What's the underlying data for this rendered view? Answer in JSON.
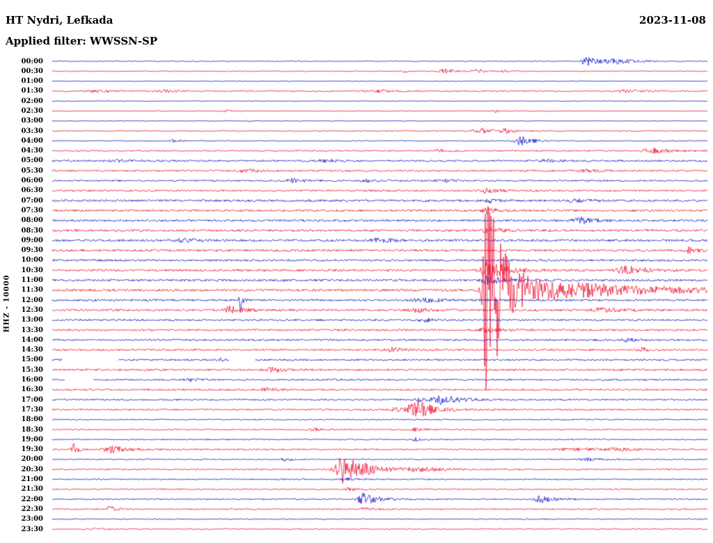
{
  "header": {
    "station": "HT Nydri, Lefkada",
    "date": "2023-11-08",
    "filter_label": "Applied filter: WWSSN-SP"
  },
  "axis": {
    "left_label": "HHZ - 10000"
  },
  "chart_data": {
    "type": "seismogram-helicorder",
    "station": "HT Nydri, Lefkada",
    "date": "2023-11-08",
    "filter": "WWSSN-SP",
    "channel_scale": "HHZ - 10000",
    "row_interval_minutes": 30,
    "trace_colors": {
      "blue": "#1414cc",
      "red": "#ee1133"
    },
    "rows": [
      {
        "time": "00:00",
        "color": "blue",
        "noise": 0.7,
        "events": [
          {
            "pos": 0.815,
            "amp": 8,
            "rise": 4,
            "decay": 18
          },
          {
            "pos": 0.862,
            "amp": 3,
            "rise": 10,
            "decay": 30
          }
        ]
      },
      {
        "time": "00:30",
        "color": "red",
        "noise": 0.7,
        "events": [
          {
            "pos": 0.538,
            "amp": 2,
            "rise": 1.5,
            "decay": 3
          },
          {
            "pos": 0.6,
            "amp": 3,
            "rise": 6,
            "decay": 16
          },
          {
            "pos": 0.648,
            "amp": 3,
            "rise": 4,
            "decay": 12
          },
          {
            "pos": 0.69,
            "amp": 2,
            "rise": 3,
            "decay": 8
          }
        ]
      },
      {
        "time": "01:00",
        "color": "blue",
        "noise": 0.5,
        "events": []
      },
      {
        "time": "01:30",
        "color": "red",
        "noise": 1.0,
        "events": [
          {
            "pos": 0.07,
            "amp": 2,
            "rise": 8,
            "decay": 18
          },
          {
            "pos": 0.175,
            "amp": 2,
            "rise": 8,
            "decay": 18
          },
          {
            "pos": 0.5,
            "amp": 1.5,
            "rise": 12,
            "decay": 25
          },
          {
            "pos": 0.88,
            "amp": 2,
            "rise": 10,
            "decay": 22
          }
        ]
      },
      {
        "time": "02:00",
        "color": "blue",
        "noise": 0.5,
        "events": []
      },
      {
        "time": "02:30",
        "color": "red",
        "noise": 0.6,
        "events": [
          {
            "pos": 0.265,
            "amp": 1.8,
            "rise": 3,
            "decay": 8
          },
          {
            "pos": 0.675,
            "amp": 2,
            "rise": 3,
            "decay": 8
          }
        ]
      },
      {
        "time": "03:00",
        "color": "blue",
        "noise": 0.5,
        "events": [
          {
            "pos": 0.3,
            "amp": 1.5,
            "rise": 2,
            "decay": 6
          }
        ]
      },
      {
        "time": "03:30",
        "color": "red",
        "noise": 0.8,
        "events": [
          {
            "pos": 0.655,
            "amp": 4,
            "rise": 8,
            "decay": 22
          },
          {
            "pos": 0.695,
            "amp": 3,
            "rise": 5,
            "decay": 14
          }
        ]
      },
      {
        "time": "04:00",
        "color": "blue",
        "noise": 0.7,
        "events": [
          {
            "pos": 0.185,
            "amp": 2,
            "rise": 4,
            "decay": 10
          },
          {
            "pos": 0.715,
            "amp": 7,
            "rise": 6,
            "decay": 16
          }
        ]
      },
      {
        "time": "04:30",
        "color": "red",
        "noise": 1.0,
        "events": [
          {
            "pos": 0.59,
            "amp": 2,
            "rise": 6,
            "decay": 14
          },
          {
            "pos": 0.915,
            "amp": 4,
            "rise": 9,
            "decay": 28
          }
        ]
      },
      {
        "time": "05:00",
        "color": "blue",
        "noise": 1.3,
        "events": [
          {
            "pos": 0.1,
            "amp": 1.8,
            "rise": 10,
            "decay": 20
          },
          {
            "pos": 0.42,
            "amp": 1.8,
            "rise": 10,
            "decay": 20
          },
          {
            "pos": 0.76,
            "amp": 1.8,
            "rise": 10,
            "decay": 20
          }
        ]
      },
      {
        "time": "05:30",
        "color": "red",
        "noise": 1.3,
        "events": [
          {
            "pos": 0.3,
            "amp": 1.8,
            "rise": 10,
            "decay": 20
          },
          {
            "pos": 0.82,
            "amp": 1.8,
            "rise": 10,
            "decay": 20
          }
        ]
      },
      {
        "time": "06:00",
        "color": "blue",
        "noise": 1.2,
        "events": [
          {
            "pos": 0.37,
            "amp": 2.5,
            "rise": 8,
            "decay": 18
          },
          {
            "pos": 0.48,
            "amp": 2,
            "rise": 8,
            "decay": 18
          },
          {
            "pos": 0.6,
            "amp": 2,
            "rise": 8,
            "decay": 18
          }
        ]
      },
      {
        "time": "06:30",
        "color": "red",
        "noise": 1.3,
        "events": [
          {
            "pos": 0.664,
            "amp": 3,
            "rise": 6,
            "decay": 18
          }
        ]
      },
      {
        "time": "07:00",
        "color": "blue",
        "noise": 1.5,
        "events": [
          {
            "pos": 0.664,
            "amp": 3,
            "rise": 5,
            "decay": 14
          },
          {
            "pos": 0.8,
            "amp": 2.5,
            "rise": 10,
            "decay": 22
          }
        ]
      },
      {
        "time": "07:30",
        "color": "red",
        "noise": 1.5,
        "events": [
          {
            "pos": 0.664,
            "amp": 4,
            "rise": 5,
            "decay": 18
          }
        ]
      },
      {
        "time": "08:00",
        "color": "blue",
        "noise": 1.5,
        "events": [
          {
            "pos": 0.805,
            "amp": 5,
            "rise": 6,
            "decay": 18
          }
        ]
      },
      {
        "time": "08:30",
        "color": "red",
        "noise": 1.6,
        "events": [
          {
            "pos": 0.664,
            "amp": 4,
            "rise": 5,
            "decay": 22
          }
        ]
      },
      {
        "time": "09:00",
        "color": "blue",
        "noise": 1.6,
        "events": [
          {
            "pos": 0.2,
            "amp": 2.5,
            "rise": 10,
            "decay": 22
          },
          {
            "pos": 0.5,
            "amp": 2.5,
            "rise": 10,
            "decay": 22
          }
        ]
      },
      {
        "time": "09:30",
        "color": "red",
        "noise": 1.6,
        "events": [
          {
            "pos": 0.972,
            "amp": 4,
            "rise": 4,
            "decay": 12
          }
        ]
      },
      {
        "time": "10:00",
        "color": "blue",
        "noise": 1.5,
        "events": []
      },
      {
        "time": "10:30",
        "color": "red",
        "noise": 1.6,
        "events": [
          {
            "pos": 0.664,
            "amp": 12,
            "rise": 6,
            "decay": 28
          },
          {
            "pos": 0.875,
            "amp": 6,
            "rise": 8,
            "decay": 28
          }
        ]
      },
      {
        "time": "11:00",
        "color": "blue",
        "noise": 1.6,
        "events": [
          {
            "pos": 0.664,
            "amp": 6,
            "rise": 5,
            "decay": 22
          }
        ]
      },
      {
        "time": "11:30",
        "color": "red",
        "noise": 1.7,
        "events": [
          {
            "pos": 0.664,
            "amp": 175,
            "rise": 4,
            "decay": 13
          },
          {
            "pos": 0.676,
            "amp": 32,
            "rise": 8,
            "decay": 38
          },
          {
            "pos": 0.7,
            "amp": 11,
            "rise": 15,
            "decay": 110
          },
          {
            "pos": 0.82,
            "amp": 4,
            "rise": 40,
            "decay": 180
          }
        ]
      },
      {
        "time": "12:00",
        "color": "blue",
        "noise": 1.5,
        "events": [
          {
            "pos": 0.287,
            "amp": 22,
            "rise": 1.3,
            "decay": 2.6
          },
          {
            "pos": 0.57,
            "amp": 3,
            "rise": 12,
            "decay": 22
          }
        ]
      },
      {
        "time": "12:30",
        "color": "red",
        "noise": 1.5,
        "events": [
          {
            "pos": 0.272,
            "amp": 5,
            "rise": 6,
            "decay": 22
          },
          {
            "pos": 0.56,
            "amp": 3,
            "rise": 8,
            "decay": 18
          },
          {
            "pos": 0.84,
            "amp": 3,
            "rise": 10,
            "decay": 26
          }
        ]
      },
      {
        "time": "13:00",
        "color": "blue",
        "noise": 1.3,
        "events": [
          {
            "pos": 0.57,
            "amp": 2.5,
            "rise": 8,
            "decay": 18
          }
        ]
      },
      {
        "time": "13:30",
        "color": "red",
        "noise": 1.4,
        "events": [
          {
            "pos": 0.665,
            "amp": 3,
            "rise": 8,
            "decay": 22
          }
        ]
      },
      {
        "time": "14:00",
        "color": "blue",
        "noise": 1.3,
        "events": [
          {
            "pos": 0.875,
            "amp": 2.5,
            "rise": 6,
            "decay": 14
          }
        ]
      },
      {
        "time": "14:30",
        "color": "red",
        "noise": 1.4,
        "events": [
          {
            "pos": 0.52,
            "amp": 3,
            "rise": 6,
            "decay": 16
          },
          {
            "pos": 0.9,
            "amp": 2.5,
            "rise": 6,
            "decay": 14
          }
        ]
      },
      {
        "time": "15:00",
        "color": "blue",
        "noise": 1.3,
        "gaps": [
          [
            0.015,
            0.1
          ],
          [
            0.27,
            0.31
          ]
        ],
        "events": [
          {
            "pos": 0.255,
            "amp": 2.5,
            "rise": 5,
            "decay": 12
          }
        ]
      },
      {
        "time": "15:30",
        "color": "red",
        "noise": 1.4,
        "events": [
          {
            "pos": 0.335,
            "amp": 3.5,
            "rise": 6,
            "decay": 16
          }
        ]
      },
      {
        "time": "16:00",
        "color": "blue",
        "noise": 1.2,
        "gaps": [
          [
            0.02,
            0.062
          ]
        ],
        "events": [
          {
            "pos": 0.21,
            "amp": 2.5,
            "rise": 5,
            "decay": 12
          }
        ]
      },
      {
        "time": "16:30",
        "color": "red",
        "noise": 1.3,
        "events": [
          {
            "pos": 0.325,
            "amp": 4,
            "rise": 3,
            "decay": 9
          }
        ]
      },
      {
        "time": "17:00",
        "color": "blue",
        "noise": 1.2,
        "events": [
          {
            "pos": 0.565,
            "amp": 3,
            "rise": 8,
            "decay": 18
          },
          {
            "pos": 0.597,
            "amp": 6,
            "rise": 8,
            "decay": 26
          }
        ]
      },
      {
        "time": "17:30",
        "color": "red",
        "noise": 1.2,
        "events": [
          {
            "pos": 0.525,
            "amp": 3,
            "rise": 5,
            "decay": 14
          },
          {
            "pos": 0.558,
            "amp": 13,
            "rise": 10,
            "decay": 22
          }
        ]
      },
      {
        "time": "18:00",
        "color": "blue",
        "noise": 0.9,
        "events": []
      },
      {
        "time": "18:30",
        "color": "red",
        "noise": 1.0,
        "events": [
          {
            "pos": 0.4,
            "amp": 2,
            "rise": 5,
            "decay": 12
          },
          {
            "pos": 0.555,
            "amp": 2,
            "rise": 5,
            "decay": 12
          }
        ]
      },
      {
        "time": "19:00",
        "color": "blue",
        "noise": 0.9,
        "events": [
          {
            "pos": 0.555,
            "amp": 2,
            "rise": 4,
            "decay": 10
          }
        ]
      },
      {
        "time": "19:30",
        "color": "red",
        "noise": 1.1,
        "events": [
          {
            "pos": 0.032,
            "amp": 9,
            "rise": 2,
            "decay": 6
          },
          {
            "pos": 0.092,
            "amp": 5,
            "rise": 8,
            "decay": 22
          },
          {
            "pos": 0.8,
            "amp": 2,
            "rise": 18,
            "decay": 40
          },
          {
            "pos": 0.862,
            "amp": 2,
            "rise": 10,
            "decay": 22
          }
        ]
      },
      {
        "time": "20:00",
        "color": "blue",
        "noise": 0.9,
        "events": [
          {
            "pos": 0.355,
            "amp": 2.5,
            "rise": 4,
            "decay": 10
          },
          {
            "pos": 0.82,
            "amp": 2,
            "rise": 8,
            "decay": 18
          }
        ]
      },
      {
        "time": "20:30",
        "color": "red",
        "noise": 1.1,
        "events": [
          {
            "pos": 0.445,
            "amp": 20,
            "rise": 8,
            "decay": 18
          },
          {
            "pos": 0.468,
            "amp": 6,
            "rise": 10,
            "decay": 45
          },
          {
            "pos": 0.56,
            "amp": 2.5,
            "rise": 10,
            "decay": 28
          }
        ]
      },
      {
        "time": "21:00",
        "color": "blue",
        "noise": 0.9,
        "events": [
          {
            "pos": 0.45,
            "amp": 2,
            "rise": 5,
            "decay": 12
          }
        ]
      },
      {
        "time": "21:30",
        "color": "red",
        "noise": 1.0,
        "events": [
          {
            "pos": 0.455,
            "amp": 2.5,
            "rise": 5,
            "decay": 14
          }
        ]
      },
      {
        "time": "22:00",
        "color": "blue",
        "noise": 1.0,
        "events": [
          {
            "pos": 0.475,
            "amp": 8,
            "rise": 6,
            "decay": 22
          },
          {
            "pos": 0.745,
            "amp": 5,
            "rise": 6,
            "decay": 18
          }
        ]
      },
      {
        "time": "22:30",
        "color": "red",
        "noise": 1.0,
        "events": [
          {
            "pos": 0.088,
            "amp": 4,
            "rise": 4,
            "decay": 11
          },
          {
            "pos": 0.475,
            "amp": 2,
            "rise": 6,
            "decay": 14
          }
        ]
      },
      {
        "time": "23:00",
        "color": "blue",
        "noise": 0.8,
        "events": []
      },
      {
        "time": "23:30",
        "color": "red",
        "noise": 0.9,
        "events": [
          {
            "pos": 0.07,
            "amp": 1.5,
            "rise": 5,
            "decay": 12
          }
        ]
      }
    ]
  }
}
